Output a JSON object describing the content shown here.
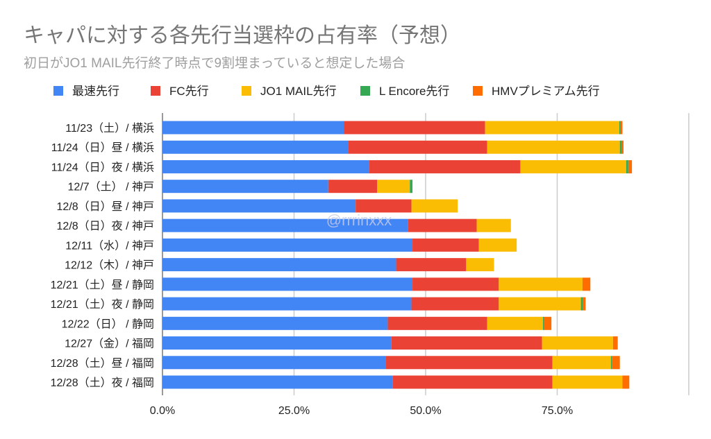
{
  "chart_data": {
    "type": "bar",
    "orientation": "horizontal",
    "stacked": true,
    "title": "キャパに対する各先行当選枠の占有率（予想）",
    "subtitle": "初日がJO1 MAIL先行終了時点で9割埋まっていると想定した場合",
    "watermark": "@rrrinxxx",
    "legend_position": "top",
    "xlim": [
      0,
      100
    ],
    "x_ticks": [
      "0.0%",
      "25.0%",
      "50.0%",
      "75.0%"
    ],
    "grid": true,
    "categories": [
      "11/23（土）/ 横浜",
      "11/24（日）昼 / 横浜",
      "11/24（日）夜 / 横浜",
      "12/7（土） / 神戸",
      "12/8（日）昼 / 神戸",
      "12/8（日）夜 / 神戸",
      "12/11（水）/ 神戸",
      "12/12（木）/ 神戸",
      "12/21（土）昼 / 静岡",
      "12/21（土）夜 / 静岡",
      "12/22（日） / 静岡",
      "12/27（金）/ 福岡",
      "12/28（土）昼 / 福岡",
      "12/28（土）夜 / 福岡"
    ],
    "series": [
      {
        "name": "最速先行",
        "color": "#4285f4",
        "values": [
          34.5,
          35.3,
          39.2,
          31.5,
          36.7,
          46.6,
          47.5,
          44.4,
          47.5,
          47.3,
          42.8,
          43.5,
          42.4,
          43.7
        ]
      },
      {
        "name": "FC先行",
        "color": "#ea4335",
        "values": [
          26.8,
          26.4,
          28.8,
          9.3,
          10.6,
          13.1,
          12.6,
          13.3,
          16.4,
          16.6,
          18.9,
          28.6,
          31.7,
          30.4
        ]
      },
      {
        "name": "JO1 MAIL先行",
        "color": "#fbbc04",
        "values": [
          25.5,
          25.2,
          20.1,
          6.2,
          8.8,
          6.5,
          7.2,
          5.3,
          15.9,
          15.6,
          10.6,
          13.5,
          11.1,
          13.3
        ]
      },
      {
        "name": "L Encore先行",
        "color": "#34a853",
        "values": [
          0.2,
          0.3,
          0.4,
          0.5,
          0,
          0,
          0,
          0,
          0,
          0.4,
          0.2,
          0,
          0.2,
          0
        ]
      },
      {
        "name": "HMVプレミアム先行",
        "color": "#ff6d01",
        "values": [
          0.4,
          0.4,
          0.7,
          0,
          0,
          0,
          0,
          0,
          1.5,
          0.5,
          1.4,
          0.9,
          1.5,
          1.3
        ]
      }
    ]
  }
}
